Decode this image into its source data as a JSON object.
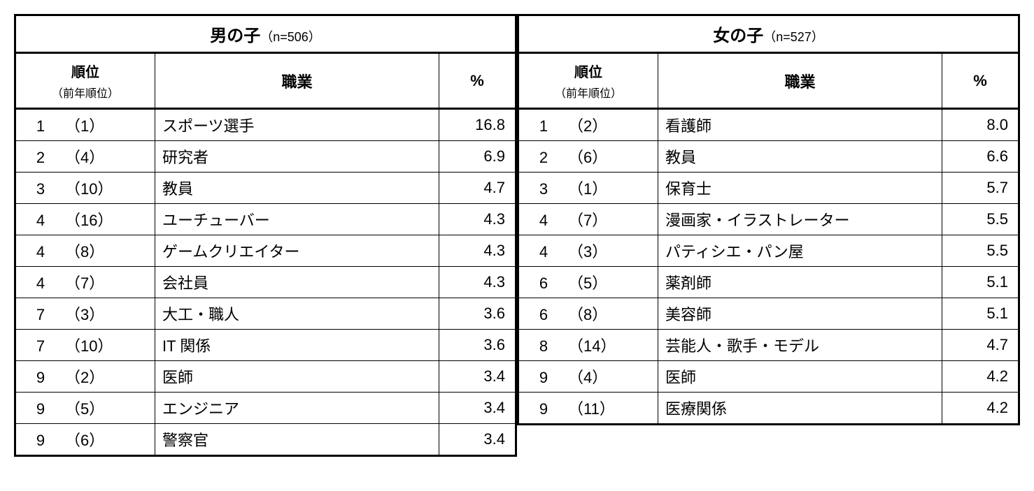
{
  "type": "table",
  "background_color": "#ffffff",
  "border_color": "#000000",
  "text_color": "#000000",
  "header_fontsize": 24,
  "n_label_fontsize": 18,
  "col_header_fontsize": 22,
  "rank_sub_fontsize": 16,
  "cell_fontsize": 22,
  "columns": {
    "rank_label": "順位",
    "prev_rank_label": "（前年順位）",
    "occupation_label": "職業",
    "percent_label": "%"
  },
  "groups": [
    {
      "title": "男の子",
      "n_label": "（n=506）",
      "rows": [
        {
          "rank": "1",
          "prev": "（1）",
          "occupation": "スポーツ選手",
          "percent": "16.8"
        },
        {
          "rank": "2",
          "prev": "（4）",
          "occupation": "研究者",
          "percent": "6.9"
        },
        {
          "rank": "3",
          "prev": "（10）",
          "occupation": "教員",
          "percent": "4.7"
        },
        {
          "rank": "4",
          "prev": "（16）",
          "occupation": "ユーチューバー",
          "percent": "4.3"
        },
        {
          "rank": "4",
          "prev": "（8）",
          "occupation": "ゲームクリエイター",
          "percent": "4.3"
        },
        {
          "rank": "4",
          "prev": "（7）",
          "occupation": "会社員",
          "percent": "4.3"
        },
        {
          "rank": "7",
          "prev": "（3）",
          "occupation": "大工・職人",
          "percent": "3.6"
        },
        {
          "rank": "7",
          "prev": "（10）",
          "occupation": "IT 関係",
          "percent": "3.6"
        },
        {
          "rank": "9",
          "prev": "（2）",
          "occupation": "医師",
          "percent": "3.4"
        },
        {
          "rank": "9",
          "prev": "（5）",
          "occupation": "エンジニア",
          "percent": "3.4"
        },
        {
          "rank": "9",
          "prev": "（6）",
          "occupation": "警察官",
          "percent": "3.4"
        }
      ]
    },
    {
      "title": "女の子",
      "n_label": "（n=527）",
      "rows": [
        {
          "rank": "1",
          "prev": "（2）",
          "occupation": "看護師",
          "percent": "8.0"
        },
        {
          "rank": "2",
          "prev": "（6）",
          "occupation": "教員",
          "percent": "6.6"
        },
        {
          "rank": "3",
          "prev": "（1）",
          "occupation": "保育士",
          "percent": "5.7"
        },
        {
          "rank": "4",
          "prev": "（7）",
          "occupation": "漫画家・イラストレーター",
          "percent": "5.5"
        },
        {
          "rank": "4",
          "prev": "（3）",
          "occupation": "パティシエ・パン屋",
          "percent": "5.5"
        },
        {
          "rank": "6",
          "prev": "（5）",
          "occupation": "薬剤師",
          "percent": "5.1"
        },
        {
          "rank": "6",
          "prev": "（8）",
          "occupation": "美容師",
          "percent": "5.1"
        },
        {
          "rank": "8",
          "prev": "（14）",
          "occupation": "芸能人・歌手・モデル",
          "percent": "4.7"
        },
        {
          "rank": "9",
          "prev": "（4）",
          "occupation": "医師",
          "percent": "4.2"
        },
        {
          "rank": "9",
          "prev": "（11）",
          "occupation": "医療関係",
          "percent": "4.2"
        }
      ]
    }
  ]
}
